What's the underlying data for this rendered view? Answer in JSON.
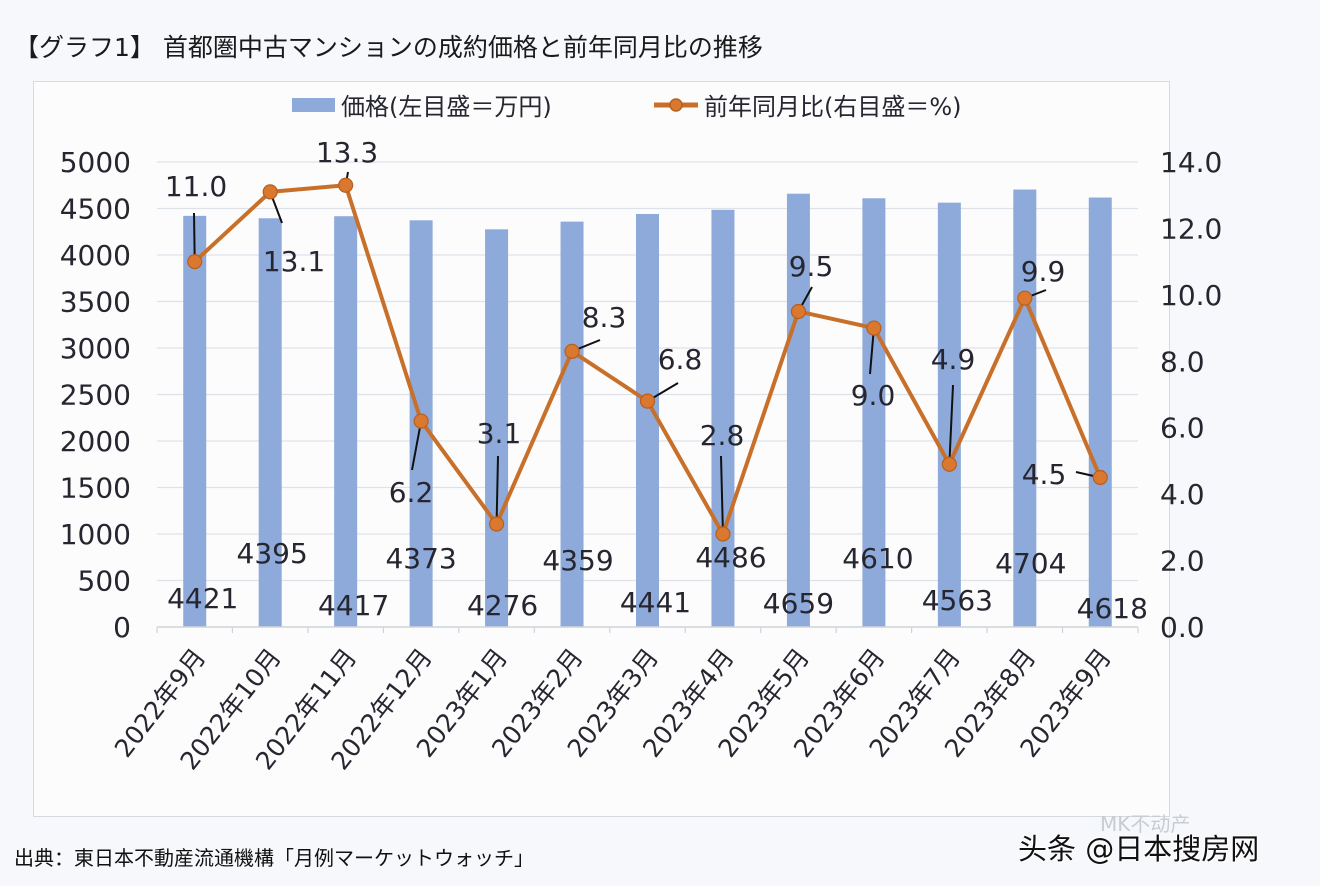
{
  "title": "【グラフ1】 首都圏中古マンションの成約価格と前年同月比の推移",
  "source": "出典：東日本不動産流通機構「月例マーケットウォッチ」",
  "watermark": "头条 @日本搜房网",
  "watermark_faint": "MK不动产",
  "colors": {
    "bar": "#8eaadb",
    "line": "#c8702a",
    "marker": "#d9782e",
    "grid": "#dde1e8",
    "text": "#262630",
    "leader": "#111111"
  },
  "chart_data": {
    "type": "bar+line",
    "title": "【グラフ1】 首都圏中古マンションの成約価格と前年同月比の推移",
    "categories": [
      "2022年9月",
      "2022年10月",
      "2022年11月",
      "2022年12月",
      "2023年1月",
      "2023年2月",
      "2023年3月",
      "2023年4月",
      "2023年5月",
      "2023年6月",
      "2023年7月",
      "2023年8月",
      "2023年9月"
    ],
    "series": [
      {
        "name": "価格(左目盛＝万円)",
        "type": "bar",
        "axis": "left",
        "values": [
          4421,
          4395,
          4417,
          4373,
          4276,
          4359,
          4441,
          4486,
          4659,
          4610,
          4563,
          4704,
          4618
        ],
        "labels": [
          "4421",
          "4395",
          "4417",
          "4373",
          "4276",
          "4359",
          "4441",
          "4486",
          "4659",
          "4610",
          "4563",
          "4704",
          "4618"
        ]
      },
      {
        "name": "前年同月比(右目盛＝%)",
        "type": "line",
        "axis": "right",
        "values": [
          11.0,
          13.1,
          13.3,
          6.2,
          3.1,
          8.3,
          6.8,
          2.8,
          9.5,
          9.0,
          4.9,
          9.9,
          4.5
        ],
        "labels": [
          "11.0",
          "13.1",
          "13.3",
          "6.2",
          "3.1",
          "8.3",
          "6.8",
          "2.8",
          "9.5",
          "9.0",
          "4.9",
          "9.9",
          "4.5"
        ]
      }
    ],
    "left_axis": {
      "ylim": [
        0,
        5000
      ],
      "ticks": [
        0,
        500,
        1000,
        1500,
        2000,
        2500,
        3000,
        3500,
        4000,
        4500,
        5000
      ],
      "tick_labels": [
        "0",
        "500",
        "1000",
        "1500",
        "2000",
        "2500",
        "3000",
        "3500",
        "4000",
        "4500",
        "5000"
      ]
    },
    "right_axis": {
      "ylim": [
        0,
        14
      ],
      "ticks": [
        0,
        2,
        4,
        6,
        8,
        10,
        12,
        14
      ],
      "tick_labels": [
        "0.0",
        "2.0",
        "4.0",
        "6.0",
        "8.0",
        "10.0",
        "12.0",
        "14.0"
      ]
    },
    "legend": {
      "position": "top",
      "entries": [
        "価格(左目盛＝万円)",
        "前年同月比(右目盛＝%)"
      ]
    },
    "grid": true,
    "xlabel": "",
    "ylabel_left": "",
    "ylabel_right": ""
  }
}
